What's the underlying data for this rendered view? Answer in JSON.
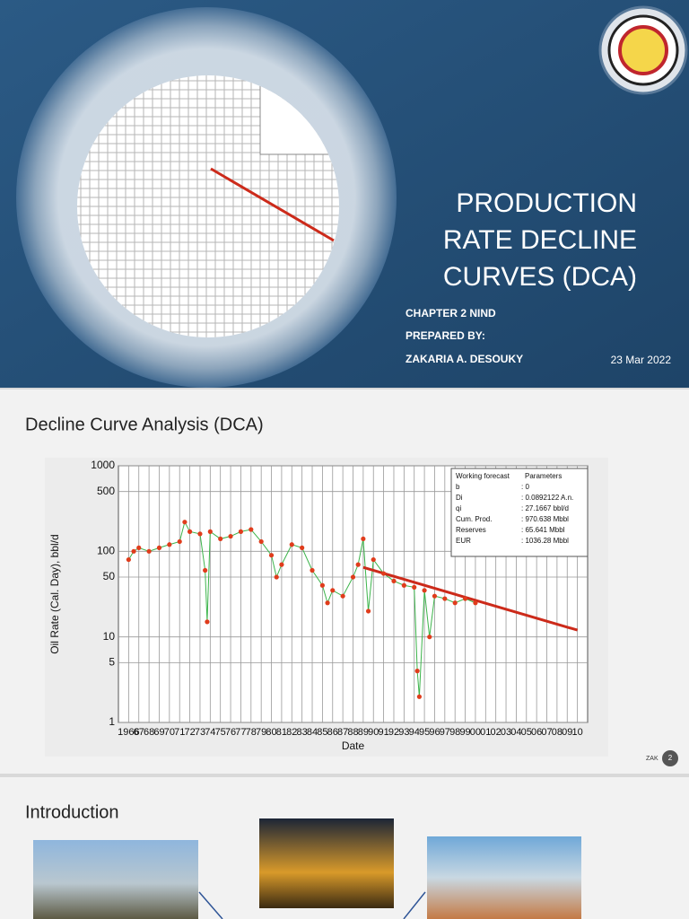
{
  "cover": {
    "title_lines": [
      "PRODUCTION",
      "RATE  DECLINE",
      "CURVES (DCA)"
    ],
    "chapter": "CHAPTER 2 NIND",
    "prepared_by": "PREPARED BY:",
    "author": "ZAKARIA A. DESOUKY",
    "date": "23 Mar 2022"
  },
  "slide2": {
    "title": "Decline Curve Analysis (DCA)",
    "footer_label": "ZAK",
    "page": 2
  },
  "chart_data": {
    "type": "scatter",
    "x_label": "Date",
    "y_label": "Oil Rate (Cal. Day), bbl/d",
    "log_y": true,
    "grid": true,
    "xlim": [
      1965,
      2011
    ],
    "ylim": [
      1,
      1000
    ],
    "yticks": [
      1,
      5,
      10,
      50,
      100,
      500,
      1000
    ],
    "xticks": [
      {
        "value": 1966,
        "label": "1966"
      },
      {
        "value": 1967,
        "label": "67"
      },
      {
        "value": 1968,
        "label": "68"
      },
      {
        "value": 1969,
        "label": "69"
      },
      {
        "value": 1970,
        "label": "70"
      },
      {
        "value": 1971,
        "label": "71"
      },
      {
        "value": 1972,
        "label": "72"
      },
      {
        "value": 1973,
        "label": "73"
      },
      {
        "value": 1974,
        "label": "74"
      },
      {
        "value": 1975,
        "label": "75"
      },
      {
        "value": 1976,
        "label": "76"
      },
      {
        "value": 1977,
        "label": "77"
      },
      {
        "value": 1978,
        "label": "78"
      },
      {
        "value": 1979,
        "label": "79"
      },
      {
        "value": 1980,
        "label": "80"
      },
      {
        "value": 1981,
        "label": "81"
      },
      {
        "value": 1982,
        "label": "82"
      },
      {
        "value": 1983,
        "label": "83"
      },
      {
        "value": 1984,
        "label": "84"
      },
      {
        "value": 1985,
        "label": "85"
      },
      {
        "value": 1986,
        "label": "86"
      },
      {
        "value": 1987,
        "label": "87"
      },
      {
        "value": 1988,
        "label": "88"
      },
      {
        "value": 1989,
        "label": "89"
      },
      {
        "value": 1990,
        "label": "90"
      },
      {
        "value": 1991,
        "label": "91"
      },
      {
        "value": 1992,
        "label": "92"
      },
      {
        "value": 1993,
        "label": "93"
      },
      {
        "value": 1994,
        "label": "94"
      },
      {
        "value": 1995,
        "label": "95"
      },
      {
        "value": 1996,
        "label": "96"
      },
      {
        "value": 1997,
        "label": "97"
      },
      {
        "value": 1998,
        "label": "98"
      },
      {
        "value": 1999,
        "label": "99"
      },
      {
        "value": 2000,
        "label": "00"
      },
      {
        "value": 2001,
        "label": "01"
      },
      {
        "value": 2002,
        "label": "02"
      },
      {
        "value": 2003,
        "label": "03"
      },
      {
        "value": 2004,
        "label": "04"
      },
      {
        "value": 2005,
        "label": "05"
      },
      {
        "value": 2006,
        "label": "06"
      },
      {
        "value": 2007,
        "label": "07"
      },
      {
        "value": 2008,
        "label": "08"
      },
      {
        "value": 2009,
        "label": "09"
      },
      {
        "value": 2010,
        "label": "10"
      }
    ],
    "x": [
      1966,
      1966.5,
      1967,
      1968,
      1969,
      1970,
      1971,
      1971.5,
      1972,
      1973,
      1973.5,
      1973.7,
      1974,
      1975,
      1976,
      1977,
      1978,
      1979,
      1980,
      1980.5,
      1981,
      1982,
      1983,
      1984,
      1985,
      1985.5,
      1986,
      1987,
      1988,
      1988.5,
      1989,
      1989.5,
      1990,
      1991,
      1992,
      1993,
      1994,
      1994.3,
      1994.5,
      1995,
      1995.5,
      1996,
      1997,
      1998,
      1999,
      2000
    ],
    "values": [
      80,
      100,
      110,
      100,
      110,
      120,
      130,
      220,
      170,
      160,
      60,
      15,
      170,
      140,
      150,
      170,
      180,
      130,
      90,
      50,
      70,
      120,
      110,
      60,
      40,
      25,
      35,
      30,
      50,
      70,
      140,
      20,
      80,
      55,
      45,
      40,
      38,
      4,
      2,
      35,
      10,
      30,
      28,
      25,
      28,
      25
    ],
    "point_color": "#e03c1c",
    "line_color": "#3cb44b",
    "forecast": {
      "x": [
        1989,
        2010
      ],
      "values": [
        65,
        12
      ],
      "color": "#cc2a1a"
    },
    "parameters": {
      "heading": [
        "Working forecast",
        "Parameters"
      ],
      "rows": [
        [
          "b",
          ": 0"
        ],
        [
          "Di",
          ": 0.0892122 A.n."
        ],
        [
          "qi",
          ": 27.1667 bbl/d"
        ],
        [
          "Cum. Prod.",
          ": 970.638 Mbbl"
        ],
        [
          "Reserves",
          ": 65.641 Mbbl"
        ],
        [
          "EUR",
          ": 1036.28 Mbbl"
        ]
      ]
    }
  },
  "slide3": {
    "title": "Introduction"
  }
}
